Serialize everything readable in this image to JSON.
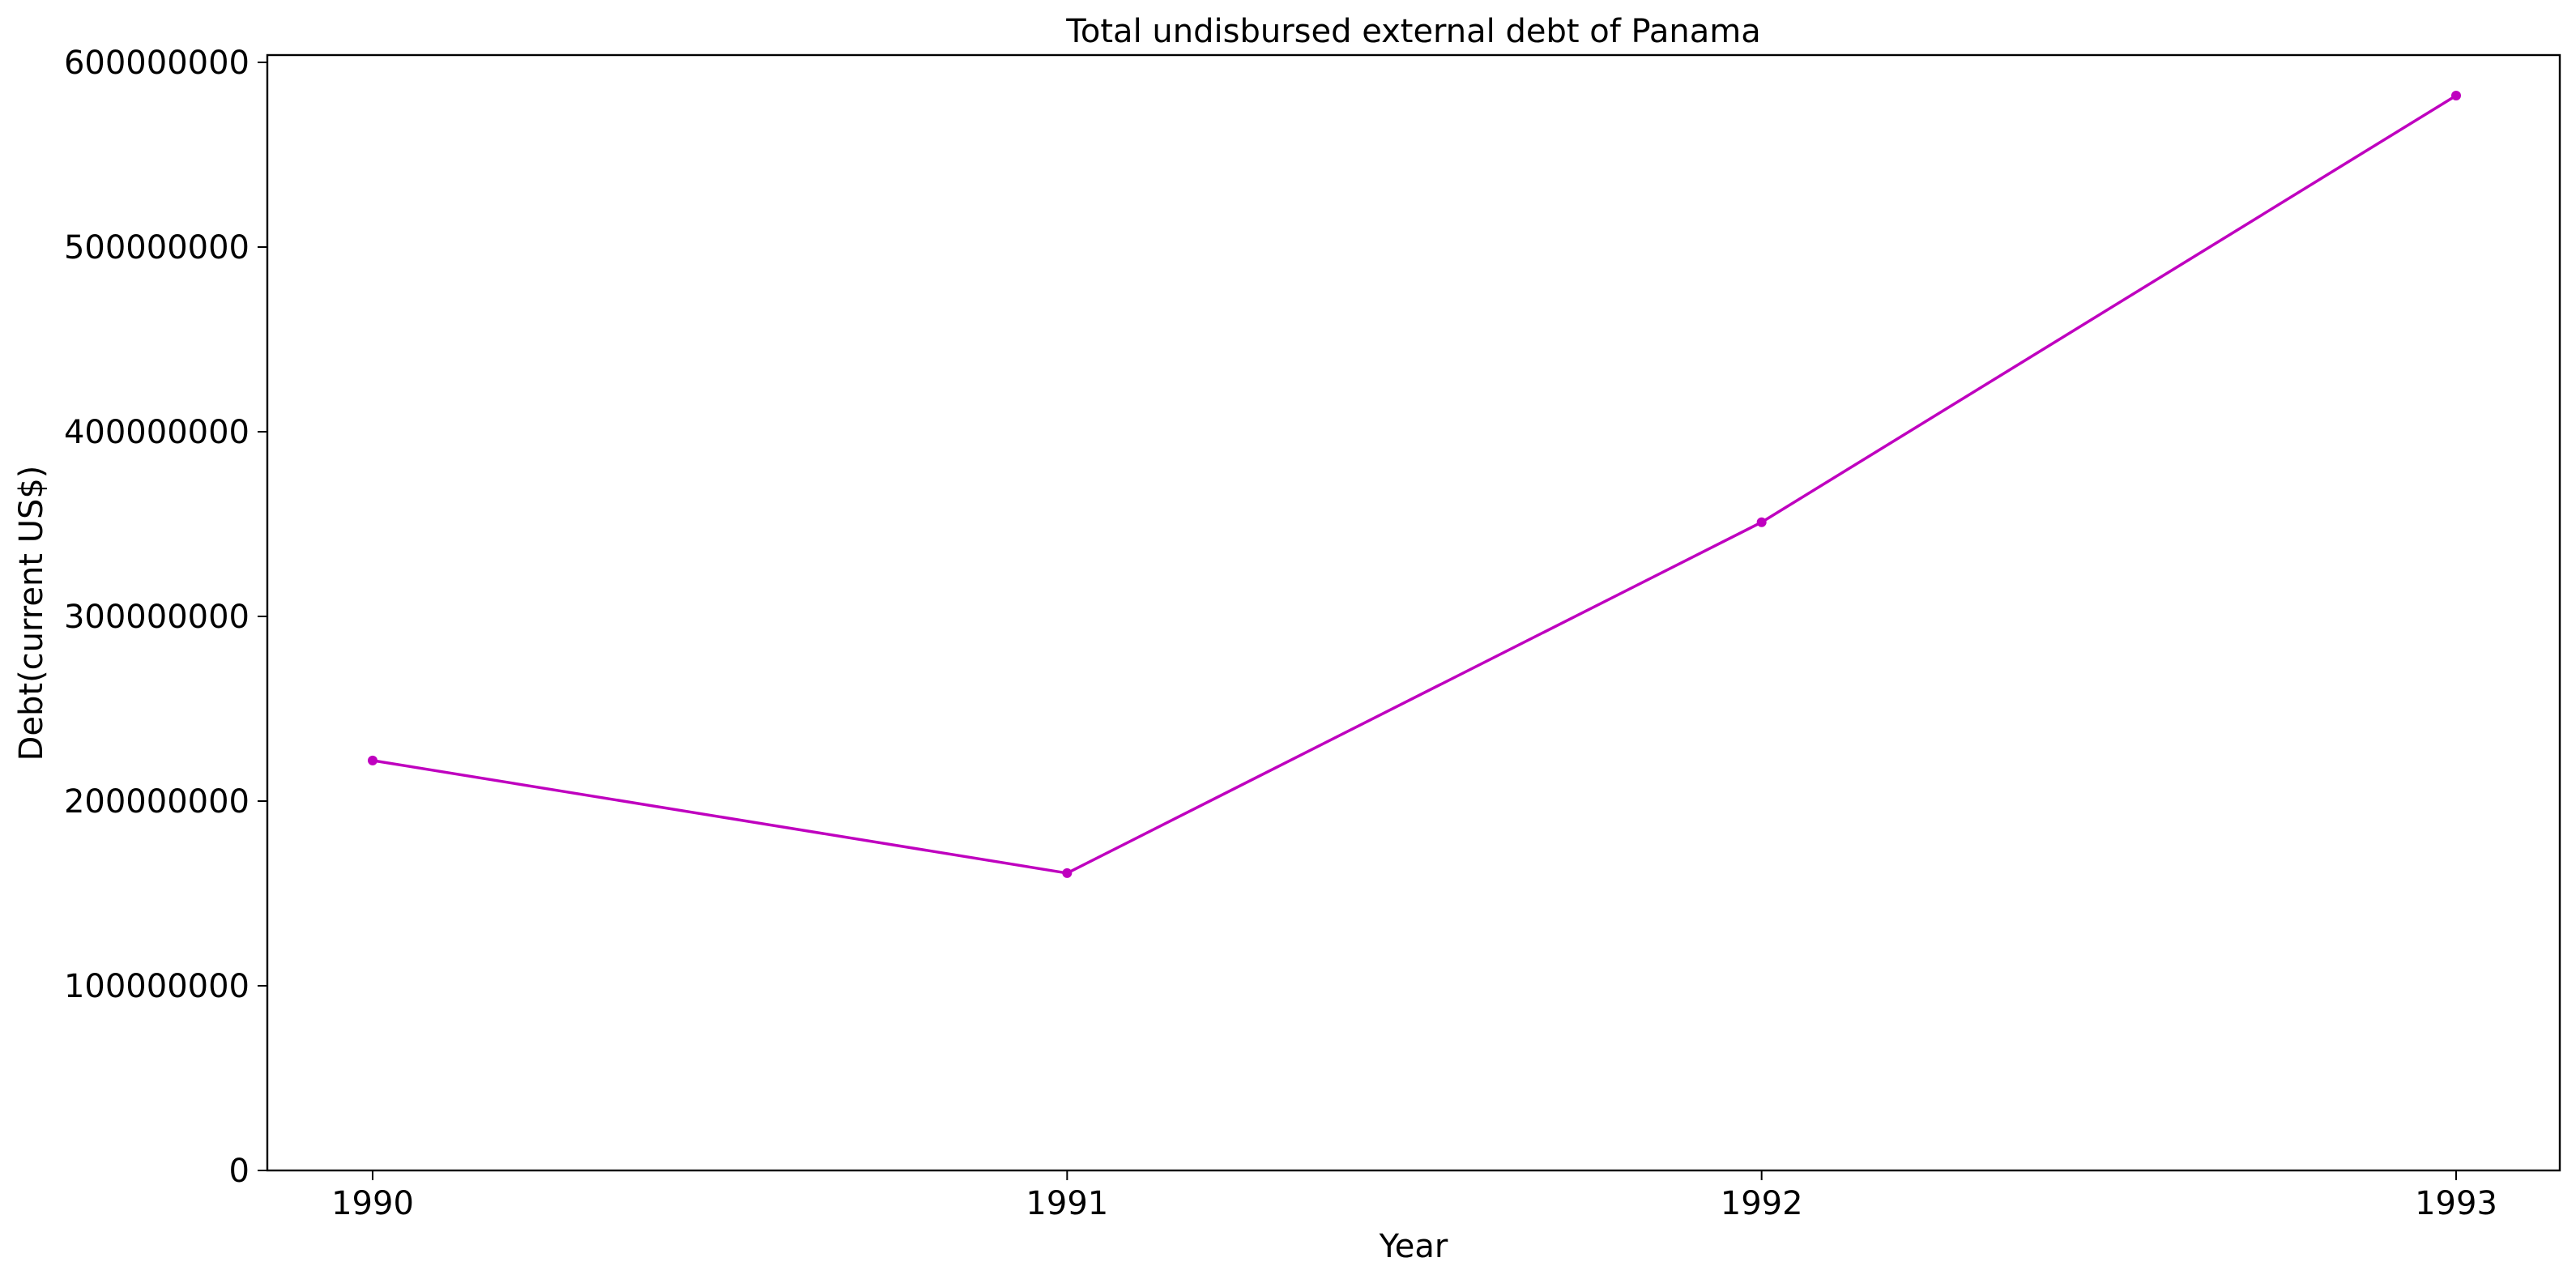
{
  "chart_data": {
    "type": "line",
    "title": "Total undisbursed external debt of Panama",
    "xlabel": "Year",
    "ylabel": "Debt(current US$)",
    "categories": [
      "1990",
      "1991",
      "1992",
      "1993"
    ],
    "series": [
      {
        "values": [
          222000000,
          161000000,
          351000000,
          582000000
        ],
        "color": "#bf00bf",
        "marker": "circle"
      }
    ],
    "ylim": [
      0,
      600000000
    ],
    "yticks": [
      0,
      100000000,
      200000000,
      300000000,
      400000000,
      500000000,
      600000000
    ],
    "ytick_labels": [
      "0",
      "100000000",
      "200000000",
      "300000000",
      "400000000",
      "500000000",
      "600000000"
    ],
    "grid": false,
    "legend": false
  }
}
